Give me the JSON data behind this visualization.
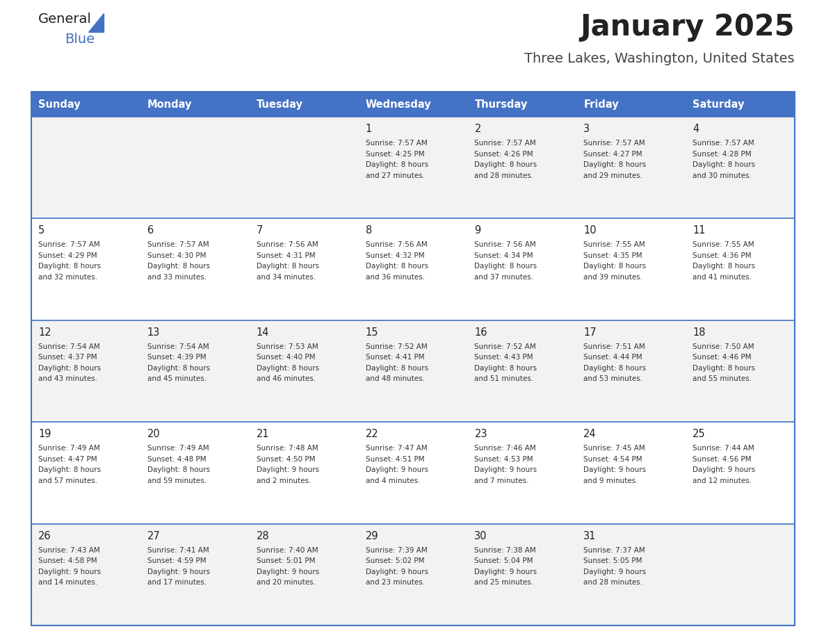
{
  "title": "January 2025",
  "subtitle": "Three Lakes, Washington, United States",
  "header_color": "#4472C4",
  "header_text_color": "#FFFFFF",
  "row_color_odd": "#F2F2F2",
  "row_color_even": "#FFFFFF",
  "border_color": "#4472C4",
  "text_color": "#333333",
  "days_of_week": [
    "Sunday",
    "Monday",
    "Tuesday",
    "Wednesday",
    "Thursday",
    "Friday",
    "Saturday"
  ],
  "weeks": [
    [
      {
        "day": "",
        "sunrise": "",
        "sunset": "",
        "daylight": ""
      },
      {
        "day": "",
        "sunrise": "",
        "sunset": "",
        "daylight": ""
      },
      {
        "day": "",
        "sunrise": "",
        "sunset": "",
        "daylight": ""
      },
      {
        "day": "1",
        "sunrise": "7:57 AM",
        "sunset": "4:25 PM",
        "daylight_line1": "Daylight: 8 hours",
        "daylight_line2": "and 27 minutes."
      },
      {
        "day": "2",
        "sunrise": "7:57 AM",
        "sunset": "4:26 PM",
        "daylight_line1": "Daylight: 8 hours",
        "daylight_line2": "and 28 minutes."
      },
      {
        "day": "3",
        "sunrise": "7:57 AM",
        "sunset": "4:27 PM",
        "daylight_line1": "Daylight: 8 hours",
        "daylight_line2": "and 29 minutes."
      },
      {
        "day": "4",
        "sunrise": "7:57 AM",
        "sunset": "4:28 PM",
        "daylight_line1": "Daylight: 8 hours",
        "daylight_line2": "and 30 minutes."
      }
    ],
    [
      {
        "day": "5",
        "sunrise": "7:57 AM",
        "sunset": "4:29 PM",
        "daylight_line1": "Daylight: 8 hours",
        "daylight_line2": "and 32 minutes."
      },
      {
        "day": "6",
        "sunrise": "7:57 AM",
        "sunset": "4:30 PM",
        "daylight_line1": "Daylight: 8 hours",
        "daylight_line2": "and 33 minutes."
      },
      {
        "day": "7",
        "sunrise": "7:56 AM",
        "sunset": "4:31 PM",
        "daylight_line1": "Daylight: 8 hours",
        "daylight_line2": "and 34 minutes."
      },
      {
        "day": "8",
        "sunrise": "7:56 AM",
        "sunset": "4:32 PM",
        "daylight_line1": "Daylight: 8 hours",
        "daylight_line2": "and 36 minutes."
      },
      {
        "day": "9",
        "sunrise": "7:56 AM",
        "sunset": "4:34 PM",
        "daylight_line1": "Daylight: 8 hours",
        "daylight_line2": "and 37 minutes."
      },
      {
        "day": "10",
        "sunrise": "7:55 AM",
        "sunset": "4:35 PM",
        "daylight_line1": "Daylight: 8 hours",
        "daylight_line2": "and 39 minutes."
      },
      {
        "day": "11",
        "sunrise": "7:55 AM",
        "sunset": "4:36 PM",
        "daylight_line1": "Daylight: 8 hours",
        "daylight_line2": "and 41 minutes."
      }
    ],
    [
      {
        "day": "12",
        "sunrise": "7:54 AM",
        "sunset": "4:37 PM",
        "daylight_line1": "Daylight: 8 hours",
        "daylight_line2": "and 43 minutes."
      },
      {
        "day": "13",
        "sunrise": "7:54 AM",
        "sunset": "4:39 PM",
        "daylight_line1": "Daylight: 8 hours",
        "daylight_line2": "and 45 minutes."
      },
      {
        "day": "14",
        "sunrise": "7:53 AM",
        "sunset": "4:40 PM",
        "daylight_line1": "Daylight: 8 hours",
        "daylight_line2": "and 46 minutes."
      },
      {
        "day": "15",
        "sunrise": "7:52 AM",
        "sunset": "4:41 PM",
        "daylight_line1": "Daylight: 8 hours",
        "daylight_line2": "and 48 minutes."
      },
      {
        "day": "16",
        "sunrise": "7:52 AM",
        "sunset": "4:43 PM",
        "daylight_line1": "Daylight: 8 hours",
        "daylight_line2": "and 51 minutes."
      },
      {
        "day": "17",
        "sunrise": "7:51 AM",
        "sunset": "4:44 PM",
        "daylight_line1": "Daylight: 8 hours",
        "daylight_line2": "and 53 minutes."
      },
      {
        "day": "18",
        "sunrise": "7:50 AM",
        "sunset": "4:46 PM",
        "daylight_line1": "Daylight: 8 hours",
        "daylight_line2": "and 55 minutes."
      }
    ],
    [
      {
        "day": "19",
        "sunrise": "7:49 AM",
        "sunset": "4:47 PM",
        "daylight_line1": "Daylight: 8 hours",
        "daylight_line2": "and 57 minutes."
      },
      {
        "day": "20",
        "sunrise": "7:49 AM",
        "sunset": "4:48 PM",
        "daylight_line1": "Daylight: 8 hours",
        "daylight_line2": "and 59 minutes."
      },
      {
        "day": "21",
        "sunrise": "7:48 AM",
        "sunset": "4:50 PM",
        "daylight_line1": "Daylight: 9 hours",
        "daylight_line2": "and 2 minutes."
      },
      {
        "day": "22",
        "sunrise": "7:47 AM",
        "sunset": "4:51 PM",
        "daylight_line1": "Daylight: 9 hours",
        "daylight_line2": "and 4 minutes."
      },
      {
        "day": "23",
        "sunrise": "7:46 AM",
        "sunset": "4:53 PM",
        "daylight_line1": "Daylight: 9 hours",
        "daylight_line2": "and 7 minutes."
      },
      {
        "day": "24",
        "sunrise": "7:45 AM",
        "sunset": "4:54 PM",
        "daylight_line1": "Daylight: 9 hours",
        "daylight_line2": "and 9 minutes."
      },
      {
        "day": "25",
        "sunrise": "7:44 AM",
        "sunset": "4:56 PM",
        "daylight_line1": "Daylight: 9 hours",
        "daylight_line2": "and 12 minutes."
      }
    ],
    [
      {
        "day": "26",
        "sunrise": "7:43 AM",
        "sunset": "4:58 PM",
        "daylight_line1": "Daylight: 9 hours",
        "daylight_line2": "and 14 minutes."
      },
      {
        "day": "27",
        "sunrise": "7:41 AM",
        "sunset": "4:59 PM",
        "daylight_line1": "Daylight: 9 hours",
        "daylight_line2": "and 17 minutes."
      },
      {
        "day": "28",
        "sunrise": "7:40 AM",
        "sunset": "5:01 PM",
        "daylight_line1": "Daylight: 9 hours",
        "daylight_line2": "and 20 minutes."
      },
      {
        "day": "29",
        "sunrise": "7:39 AM",
        "sunset": "5:02 PM",
        "daylight_line1": "Daylight: 9 hours",
        "daylight_line2": "and 23 minutes."
      },
      {
        "day": "30",
        "sunrise": "7:38 AM",
        "sunset": "5:04 PM",
        "daylight_line1": "Daylight: 9 hours",
        "daylight_line2": "and 25 minutes."
      },
      {
        "day": "31",
        "sunrise": "7:37 AM",
        "sunset": "5:05 PM",
        "daylight_line1": "Daylight: 9 hours",
        "daylight_line2": "and 28 minutes."
      },
      {
        "day": "",
        "sunrise": "",
        "sunset": "",
        "daylight_line1": "",
        "daylight_line2": ""
      }
    ]
  ]
}
